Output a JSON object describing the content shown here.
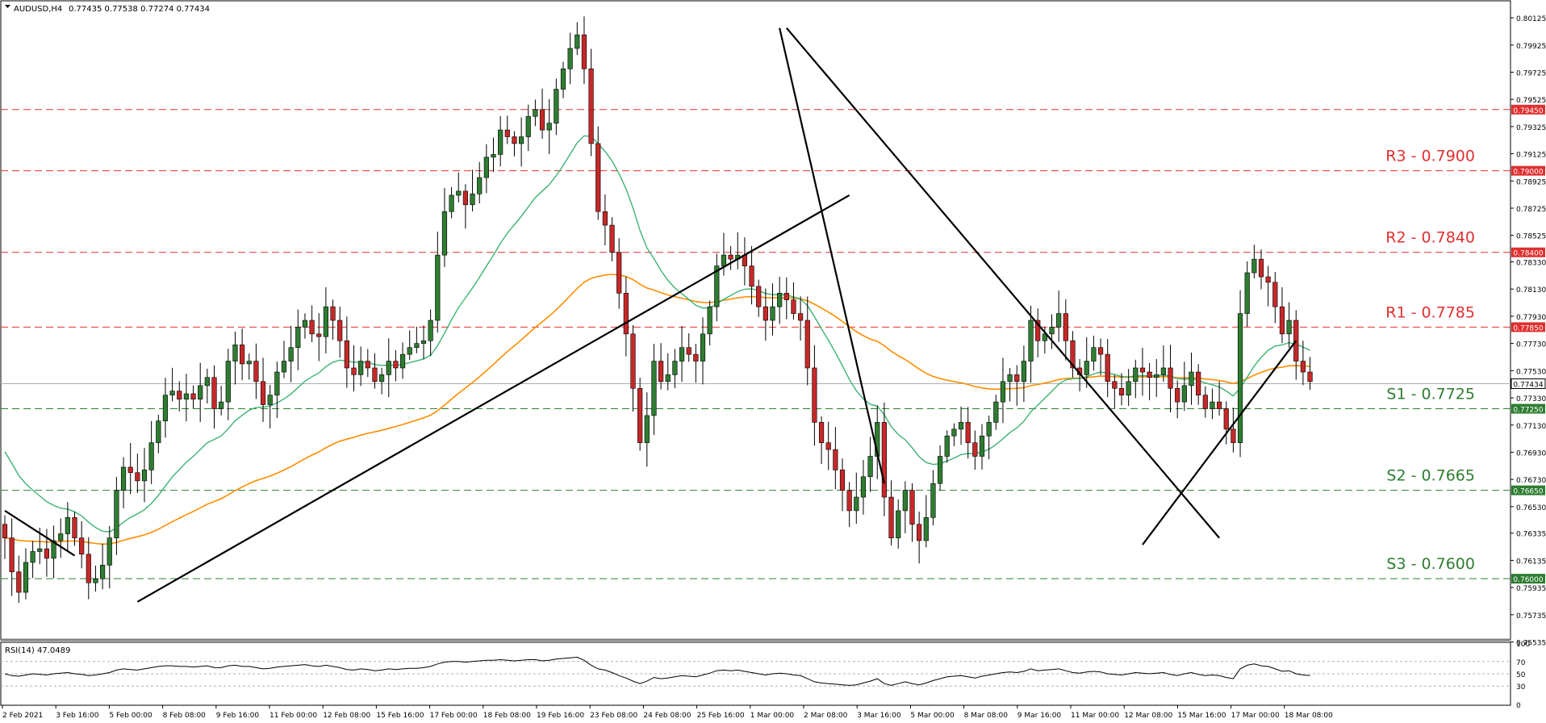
{
  "header": {
    "symbol": "AUDUSD,H4",
    "quote": "0.77435 0.77538 0.77274 0.77434"
  },
  "rsi_header": "RSI(14) 47.0489",
  "colors": {
    "bull": "#2e7d32",
    "bear": "#c62828",
    "ma_fast": "#3cb371",
    "ma_slow": "#ff8c00",
    "resistance": "#e03030",
    "support": "#2e7d32",
    "trend": "#000000",
    "current": "#aab0b0"
  },
  "chart_data": {
    "type": "candlestick",
    "symbol": "AUDUSD",
    "timeframe": "H4",
    "ylim": [
      0.7555,
      0.8025
    ],
    "price_ticks": [
      "0.80125",
      "0.79925",
      "0.79725",
      "0.79525",
      "0.79325",
      "0.79125",
      "0.78925",
      "0.78725",
      "0.78525",
      "0.78330",
      "0.78130",
      "0.77930",
      "0.77730",
      "0.77530",
      "0.77330",
      "0.77130",
      "0.76930",
      "0.76730",
      "0.76530",
      "0.76335",
      "0.76135",
      "0.75935",
      "0.75735",
      "0.75535"
    ],
    "x_ticks": [
      "2 Feb 2021",
      "3 Feb 16:00",
      "5 Feb 00:00",
      "8 Feb 08:00",
      "9 Feb 16:00",
      "11 Feb 00:00",
      "12 Feb 08:00",
      "15 Feb 16:00",
      "17 Feb 00:00",
      "18 Feb 08:00",
      "19 Feb 16:00",
      "23 Feb 08:00",
      "24 Feb 08:00",
      "25 Feb 16:00",
      "1 Mar 00:00",
      "2 Mar 08:00",
      "3 Mar 16:00",
      "5 Mar 00:00",
      "8 Mar 08:00",
      "9 Mar 16:00",
      "11 Mar 00:00",
      "12 Mar 08:00",
      "15 Mar 16:00",
      "17 Mar 00:00",
      "18 Mar 08:00"
    ],
    "candles_close": [
      0.763,
      0.7605,
      0.759,
      0.7612,
      0.762,
      0.7622,
      0.7615,
      0.7628,
      0.7633,
      0.7645,
      0.763,
      0.7618,
      0.7597,
      0.76,
      0.761,
      0.763,
      0.7665,
      0.7682,
      0.7678,
      0.7672,
      0.768,
      0.77,
      0.7716,
      0.7735,
      0.7738,
      0.7732,
      0.7736,
      0.7732,
      0.7742,
      0.7748,
      0.7725,
      0.773,
      0.776,
      0.7772,
      0.7758,
      0.776,
      0.7745,
      0.7728,
      0.7735,
      0.7752,
      0.776,
      0.777,
      0.7785,
      0.779,
      0.778,
      0.7778,
      0.78,
      0.779,
      0.7775,
      0.7755,
      0.775,
      0.776,
      0.7755,
      0.7745,
      0.775,
      0.776,
      0.7755,
      0.7765,
      0.777,
      0.7773,
      0.7775,
      0.779,
      0.7838,
      0.787,
      0.7882,
      0.7885,
      0.7875,
      0.7883,
      0.7895,
      0.791,
      0.7912,
      0.793,
      0.7925,
      0.792,
      0.7925,
      0.794,
      0.7945,
      0.793,
      0.7935,
      0.796,
      0.7975,
      0.799,
      0.8,
      0.7975,
      0.792,
      0.787,
      0.786,
      0.784,
      0.781,
      0.778,
      0.774,
      0.77,
      0.772,
      0.776,
      0.7745,
      0.775,
      0.776,
      0.777,
      0.7765,
      0.776,
      0.778,
      0.78,
      0.783,
      0.7838,
      0.7835,
      0.7838,
      0.783,
      0.7815,
      0.78,
      0.779,
      0.78,
      0.781,
      0.7805,
      0.7795,
      0.779,
      0.7755,
      0.7715,
      0.77,
      0.7695,
      0.768,
      0.7665,
      0.765,
      0.766,
      0.7675,
      0.769,
      0.7715,
      0.766,
      0.763,
      0.765,
      0.7665,
      0.764,
      0.7628,
      0.7645,
      0.767,
      0.769,
      0.7705,
      0.771,
      0.7715,
      0.77,
      0.769,
      0.7705,
      0.7715,
      0.773,
      0.7745,
      0.775,
      0.7745,
      0.776,
      0.779,
      0.7775,
      0.778,
      0.7785,
      0.7795,
      0.7775,
      0.7755,
      0.775,
      0.776,
      0.777,
      0.7765,
      0.7745,
      0.774,
      0.7735,
      0.7745,
      0.7755,
      0.7752,
      0.7748,
      0.775,
      0.7755,
      0.774,
      0.773,
      0.7742,
      0.7752,
      0.7735,
      0.7725,
      0.773,
      0.7725,
      0.771,
      0.77,
      0.7795,
      0.7825,
      0.7835,
      0.7822,
      0.7818,
      0.78,
      0.778,
      0.779,
      0.776,
      0.7752,
      0.7745
    ],
    "ma_fast_label": "",
    "ma_slow_label": "",
    "levels": [
      {
        "label": "R3 - 0.7900",
        "value": 0.79,
        "tag": "0.79000",
        "kind": "resistance"
      },
      {
        "label": "R2 - 0.7840",
        "value": 0.784,
        "tag": "0.78400",
        "kind": "resistance"
      },
      {
        "label": "R1 - 0.7785",
        "value": 0.7785,
        "tag": "0.77850",
        "kind": "resistance"
      },
      {
        "label": "S1 - 0.7725",
        "value": 0.7725,
        "tag": "0.77250",
        "kind": "support"
      },
      {
        "label": "S2 - 0.7665",
        "value": 0.7665,
        "tag": "0.76650",
        "kind": "support"
      },
      {
        "label": "S3 - 0.7600",
        "value": 0.76,
        "tag": "0.76000",
        "kind": "support"
      }
    ],
    "extra_level": {
      "value": 0.7945,
      "tag": "0.79450"
    },
    "current_price": {
      "value": 0.77434,
      "tag": "0.77434"
    },
    "rsi": {
      "ylim": [
        0,
        100
      ],
      "ticks": [
        "100",
        "70",
        "50",
        "30",
        "0"
      ],
      "values": [
        50,
        47,
        46,
        48,
        50,
        49,
        48,
        50,
        51,
        52,
        50,
        49,
        47,
        48,
        50,
        52,
        56,
        58,
        57,
        56,
        58,
        60,
        62,
        63,
        63,
        62,
        62,
        61,
        62,
        63,
        60,
        60,
        63,
        64,
        62,
        62,
        60,
        58,
        59,
        61,
        62,
        63,
        64,
        65,
        63,
        62,
        64,
        62,
        60,
        57,
        56,
        58,
        57,
        55,
        56,
        58,
        57,
        58,
        59,
        59,
        60,
        62,
        66,
        69,
        70,
        70,
        69,
        70,
        71,
        72,
        72,
        73,
        72,
        71,
        72,
        73,
        73,
        71,
        72,
        74,
        75,
        76,
        77,
        72,
        64,
        58,
        56,
        52,
        47,
        43,
        38,
        34,
        38,
        44,
        42,
        43,
        45,
        47,
        46,
        45,
        48,
        51,
        55,
        56,
        55,
        56,
        54,
        52,
        50,
        48,
        50,
        51,
        50,
        48,
        47,
        42,
        37,
        35,
        34,
        33,
        32,
        31,
        32,
        35,
        38,
        42,
        34,
        31,
        34,
        37,
        34,
        32,
        35,
        39,
        42,
        45,
        46,
        47,
        45,
        43,
        46,
        48,
        50,
        52,
        53,
        52,
        54,
        58,
        55,
        56,
        57,
        58,
        55,
        52,
        51,
        53,
        54,
        53,
        50,
        49,
        48,
        50,
        52,
        51,
        50,
        51,
        52,
        49,
        47,
        50,
        52,
        49,
        47,
        48,
        47,
        44,
        42,
        58,
        64,
        66,
        63,
        62,
        58,
        54,
        55,
        50,
        48,
        47
      ]
    },
    "trendlines": [
      {
        "from": [
          0,
          0.765
        ],
        "to": [
          10,
          0.7617
        ]
      },
      {
        "from": [
          19,
          0.7583
        ],
        "to": [
          121,
          0.7882
        ]
      },
      {
        "from": [
          111,
          0.8005
        ],
        "to": [
          126,
          0.767
        ]
      },
      {
        "from": [
          112,
          0.8005
        ],
        "to": [
          174,
          0.763
        ]
      },
      {
        "from": [
          163,
          0.7625
        ],
        "to": [
          185,
          0.7775
        ]
      }
    ]
  }
}
